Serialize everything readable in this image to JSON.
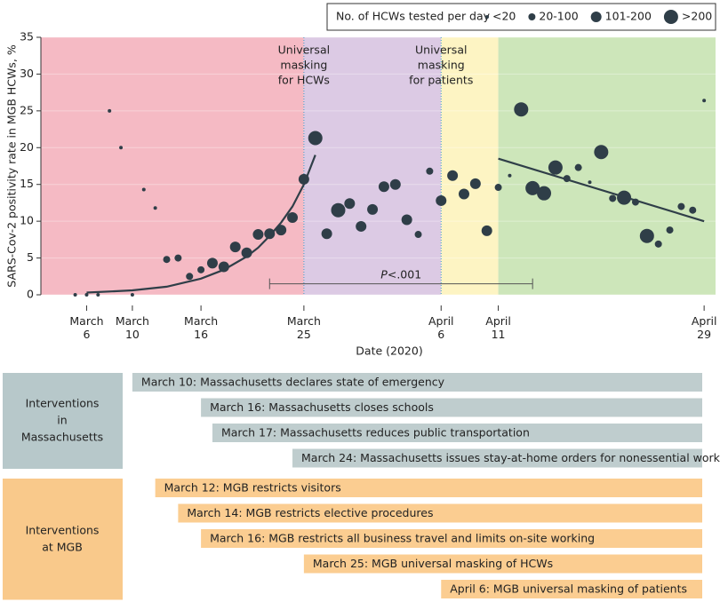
{
  "chart_data": {
    "type": "scatter",
    "y_label": "SARS-Cov-2 positivity rate in MGB HCWs, %",
    "x_label": "Date (2020)",
    "xlim": [
      "2020-03-02",
      "2020-04-30"
    ],
    "ylim": [
      0,
      35
    ],
    "yticks": [
      0,
      5,
      10,
      15,
      20,
      25,
      30,
      35
    ],
    "xticks": [
      {
        "value": "2020-03-06",
        "label": "March 6"
      },
      {
        "value": "2020-03-10",
        "label": "March 10"
      },
      {
        "value": "2020-03-16",
        "label": "March 16"
      },
      {
        "value": "2020-03-25",
        "label": "March 25"
      },
      {
        "value": "2020-04-06",
        "label": "April 6"
      },
      {
        "value": "2020-04-11",
        "label": "April 11"
      },
      {
        "value": "2020-04-29",
        "label": "April 29"
      }
    ],
    "legend_title": "No. of HCWs tested per day",
    "legend_position": "top-right",
    "point_color": "#2f3e48",
    "phases": [
      {
        "start": "2020-03-02",
        "end": "2020-03-25",
        "color": "#f5bac4"
      },
      {
        "start": "2020-03-25",
        "end": "2020-04-06",
        "color": "#dccae4"
      },
      {
        "start": "2020-04-06",
        "end": "2020-04-11",
        "color": "#fdf4c3"
      },
      {
        "start": "2020-04-11",
        "end": "2020-04-30",
        "color": "#cde6ba"
      }
    ],
    "annotations": [
      {
        "x": "2020-03-25",
        "lines": [
          "Universal",
          "masking",
          "for HCWs"
        ]
      },
      {
        "x": "2020-04-06",
        "lines": [
          "Universal",
          "masking",
          "for patients"
        ]
      }
    ],
    "annotation_color": "#3d9fca",
    "p_bracket": {
      "start": "2020-03-22",
      "end": "2020-04-14",
      "y": 1.5,
      "p_symbol": "P",
      "p_text": "<.001"
    },
    "series": [
      {
        "name": "<20",
        "x": [
          "2020-03-05",
          "2020-03-06",
          "2020-03-07",
          "2020-03-08",
          "2020-03-09",
          "2020-03-10",
          "2020-03-11",
          "2020-03-12",
          "2020-04-12",
          "2020-04-19",
          "2020-04-29"
        ],
        "values": [
          0,
          0,
          0,
          25,
          20,
          0,
          14.3,
          11.8,
          16.2,
          15.3,
          26.4
        ]
      },
      {
        "name": "20-100",
        "x": [
          "2020-03-13",
          "2020-03-14",
          "2020-03-15",
          "2020-03-16",
          "2020-04-04",
          "2020-04-05",
          "2020-04-11",
          "2020-04-17",
          "2020-04-18",
          "2020-04-21",
          "2020-04-23",
          "2020-04-25",
          "2020-04-26",
          "2020-04-27",
          "2020-04-28"
        ],
        "values": [
          4.8,
          5,
          2.5,
          3.4,
          8.2,
          16.8,
          14.6,
          15.8,
          17.3,
          13.1,
          12.6,
          6.9,
          8.8,
          12,
          11.5
        ]
      },
      {
        "name": "101-200",
        "x": [
          "2020-03-17",
          "2020-03-18",
          "2020-03-19",
          "2020-03-20",
          "2020-03-21",
          "2020-03-22",
          "2020-03-23",
          "2020-03-24",
          "2020-03-25",
          "2020-03-27",
          "2020-03-29",
          "2020-03-30",
          "2020-03-31",
          "2020-04-01",
          "2020-04-02",
          "2020-04-03",
          "2020-04-06",
          "2020-04-07",
          "2020-04-08",
          "2020-04-09",
          "2020-04-10"
        ],
        "values": [
          4.3,
          3.8,
          6.5,
          5.7,
          8.2,
          8.3,
          8.8,
          10.5,
          15.7,
          8.3,
          12.4,
          9.3,
          11.6,
          14.7,
          15,
          10.2,
          12.8,
          16.2,
          13.7,
          15.1,
          8.7
        ]
      },
      {
        "name": ">200",
        "x": [
          "2020-03-26",
          "2020-03-28",
          "2020-04-13",
          "2020-04-14",
          "2020-04-15",
          "2020-04-16",
          "2020-04-20",
          "2020-04-22",
          "2020-04-24"
        ],
        "values": [
          21.3,
          11.5,
          25.2,
          14.5,
          13.8,
          17.3,
          19.4,
          13.2,
          8
        ]
      }
    ],
    "trend_lines": [
      {
        "x": [
          "2020-03-06",
          "2020-03-10",
          "2020-03-13",
          "2020-03-16",
          "2020-03-18",
          "2020-03-20",
          "2020-03-21",
          "2020-03-22",
          "2020-03-23",
          "2020-03-24",
          "2020-03-25",
          "2020-03-26"
        ],
        "values": [
          0.3,
          0.6,
          1.1,
          2.2,
          3.4,
          5.2,
          6.4,
          8,
          9.8,
          12,
          15,
          19
        ]
      },
      {
        "x": [
          "2020-04-11",
          "2020-04-29"
        ],
        "values": [
          18.5,
          10
        ]
      }
    ]
  },
  "interventions": [
    {
      "label_lines": [
        "Interventions",
        "in",
        "Massachusetts"
      ],
      "color": "#b7c8ca",
      "bar_color": "#bfcdce",
      "items": [
        {
          "date": "2020-03-10",
          "text": "March 10: Massachusetts declares state of emergency"
        },
        {
          "date": "2020-03-16",
          "text": "March 16: Massachusetts closes schools"
        },
        {
          "date": "2020-03-17",
          "text": "March 17: Massachusetts reduces public transportation"
        },
        {
          "date": "2020-03-24",
          "text": "March 24: Massachusetts issues stay-at-home orders for nonessential workers"
        }
      ]
    },
    {
      "label_lines": [
        "Interventions",
        "at MGB"
      ],
      "color": "#f9c98b",
      "bar_color": "#fbcd91",
      "items": [
        {
          "date": "2020-03-12",
          "text": "March 12: MGB restricts visitors"
        },
        {
          "date": "2020-03-14",
          "text": "March 14: MGB restricts elective procedures"
        },
        {
          "date": "2020-03-16",
          "text": "March 16: MGB restricts all business travel and limits on-site working"
        },
        {
          "date": "2020-03-25",
          "text": "March 25: MGB universal masking of HCWs"
        },
        {
          "date": "2020-04-06",
          "text": "April 6: MGB universal masking of patients"
        }
      ]
    }
  ]
}
